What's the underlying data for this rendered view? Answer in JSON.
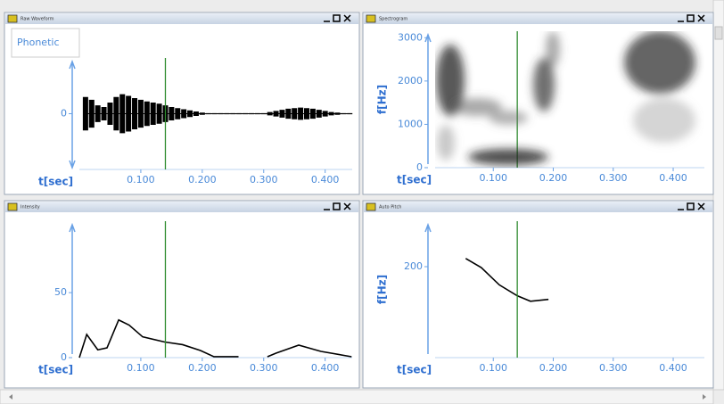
{
  "chart_data": [
    {
      "type": "waveform",
      "window_title": "Raw Waveform",
      "tier_label": "Phonetic",
      "x_label": "t[sec]",
      "x": [
        0.01,
        0.02,
        0.03,
        0.04,
        0.05,
        0.06,
        0.07,
        0.08,
        0.09,
        0.1,
        0.11,
        0.12,
        0.13,
        0.14,
        0.15,
        0.16,
        0.17,
        0.18,
        0.19,
        0.2,
        0.21,
        0.22,
        0.23,
        0.24,
        0.25,
        0.26,
        0.27,
        0.28,
        0.29,
        0.3,
        0.31,
        0.32,
        0.33,
        0.34,
        0.35,
        0.36,
        0.37,
        0.38,
        0.39,
        0.4,
        0.41,
        0.42,
        0.43,
        0.44
      ],
      "values": [
        0.3,
        0.25,
        0.15,
        0.12,
        0.2,
        0.3,
        0.35,
        0.32,
        0.28,
        0.25,
        0.22,
        0.2,
        0.18,
        0.15,
        0.12,
        0.1,
        0.08,
        0.06,
        0.04,
        0.02,
        0.01,
        0.01,
        0.01,
        0.01,
        0.01,
        0.01,
        0.01,
        0.01,
        0.01,
        0.01,
        0.03,
        0.05,
        0.07,
        0.09,
        0.1,
        0.11,
        0.1,
        0.09,
        0.07,
        0.05,
        0.03,
        0.02,
        0.01,
        0.01
      ],
      "color": "#000000",
      "cursor": 0.14,
      "cursor_color": "#2e8b2e",
      "xlim": [
        0,
        0.444
      ],
      "ylim": [
        -1,
        1
      ],
      "yticks": [
        0
      ],
      "xticks": [
        {
          "value": 0.1,
          "label": "0.100"
        },
        {
          "value": 0.2,
          "label": "0.200"
        },
        {
          "value": 0.3,
          "label": "0.300"
        },
        {
          "value": 0.4,
          "label": "0.400"
        }
      ]
    },
    {
      "type": "spectrogram",
      "window_title": "Spectrogram",
      "x_label": "t[sec]",
      "y_label": "f[Hz]",
      "cursor": 0.14,
      "cursor_color": "#2e8b2e",
      "xlim": [
        0.003,
        0.452
      ],
      "ylim": [
        0,
        3150
      ],
      "yticks": [
        0,
        1000,
        2000,
        3000
      ],
      "xticks": [
        {
          "value": 0.1,
          "label": "0.100"
        },
        {
          "value": 0.2,
          "label": "0.200"
        },
        {
          "value": 0.3,
          "label": "0.300"
        },
        {
          "value": 0.4,
          "label": "0.400"
        }
      ]
    },
    {
      "type": "line",
      "window_title": "Intensity",
      "x_label": "t[sec]",
      "x": [
        0,
        0.012,
        0.03,
        0.045,
        0.064,
        0.081,
        0.103,
        0.139,
        0.168,
        0.197,
        0.219,
        0.259,
        0.28,
        0.306,
        0.32,
        0.357,
        0.393,
        0.443
      ],
      "values": [
        0,
        17.8,
        6,
        7.5,
        29,
        25,
        16,
        12,
        10,
        5.5,
        0.7,
        0.7,
        null,
        0.7,
        3.4,
        9.6,
        4.8,
        0.7
      ],
      "color": "#000000",
      "cursor": 0.14,
      "cursor_color": "#2e8b2e",
      "xlim": [
        0,
        0.444
      ],
      "ylim": [
        0,
        105
      ],
      "yticks": [
        0,
        50
      ],
      "xticks": [
        {
          "value": 0.1,
          "label": "0.100"
        },
        {
          "value": 0.2,
          "label": "0.200"
        },
        {
          "value": 0.3,
          "label": "0.300"
        },
        {
          "value": 0.4,
          "label": "0.400"
        }
      ]
    },
    {
      "type": "line",
      "window_title": "Auto Pitch",
      "x_label": "t[sec]",
      "y_label": "f[Hz]",
      "x": [
        0.054,
        0.08,
        0.11,
        0.14,
        0.162,
        0.192
      ],
      "values": [
        209,
        199,
        180,
        168,
        162,
        164
      ],
      "color": "#000000",
      "cursor": 0.14,
      "cursor_color": "#2e8b2e",
      "xlim": [
        0.003,
        0.452
      ],
      "ylim": [
        100,
        250
      ],
      "yticks": [
        200
      ],
      "xticks": [
        {
          "value": 0.1,
          "label": "0.100"
        },
        {
          "value": 0.2,
          "label": "0.200"
        },
        {
          "value": 0.3,
          "label": "0.300"
        },
        {
          "value": 0.4,
          "label": "0.400"
        }
      ]
    }
  ]
}
